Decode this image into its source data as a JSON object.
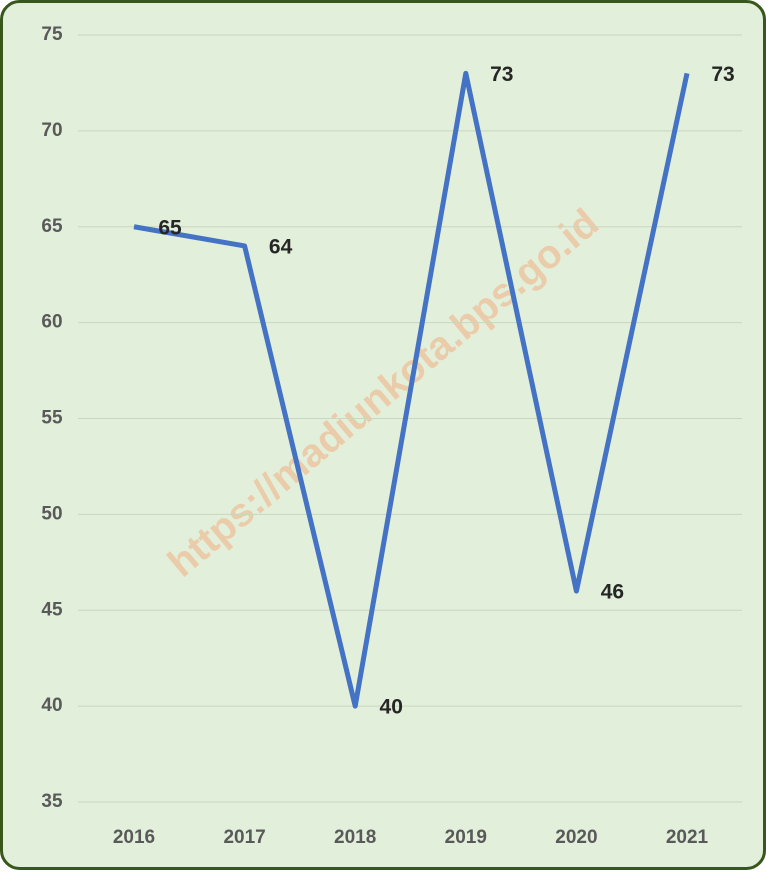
{
  "chart_data": {
    "type": "line",
    "categories": [
      "2016",
      "2017",
      "2018",
      "2019",
      "2020",
      "2021"
    ],
    "series": [
      {
        "color": "#4472c4",
        "values": [
          65,
          64,
          40,
          73,
          46,
          73
        ]
      }
    ],
    "ylim": [
      35,
      75
    ],
    "yticks": [
      35,
      40,
      45,
      50,
      55,
      60,
      65,
      70,
      75
    ],
    "grid": true,
    "watermark": "https://madiunkota.bps.go.id"
  }
}
